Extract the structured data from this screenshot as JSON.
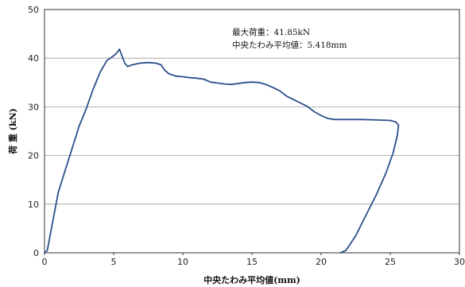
{
  "chart_data": {
    "type": "line",
    "title": "",
    "xlabel": "中央たわみ平均値(mm)",
    "ylabel": "荷 重 (kN)",
    "xlim": [
      0,
      30
    ],
    "ylim": [
      0,
      50
    ],
    "x_ticks": [
      "0",
      "5",
      "10",
      "15",
      "20",
      "25",
      "30"
    ],
    "y_ticks": [
      "0",
      "10",
      "20",
      "30",
      "40",
      "50"
    ],
    "grid": "horizontal",
    "annotations": [
      "最大荷重：41.85kN",
      "中央たわみ平均値：5.418mm"
    ],
    "series_color": "#2b4f8a",
    "series": [
      {
        "x": [
          0.0,
          0.2,
          0.5,
          1.0,
          1.5,
          2.0,
          2.5,
          3.0,
          3.5,
          4.0,
          4.5,
          5.0,
          5.2,
          5.418,
          5.6,
          5.8,
          6.0,
          6.3,
          6.6,
          7.0,
          7.5,
          8.0,
          8.4,
          8.7,
          9.0,
          9.5,
          10.0,
          10.5,
          11.0,
          11.5,
          12.0,
          12.5,
          13.0,
          13.5,
          14.0,
          14.5,
          15.0,
          15.5,
          16.0,
          16.5,
          17.0,
          17.5,
          18.0,
          18.5,
          19.0,
          19.5,
          20.0,
          20.5,
          21.0,
          22.0,
          23.0,
          24.0,
          25.0,
          25.4,
          25.6,
          25.5,
          25.2,
          24.7,
          24.0,
          23.2,
          22.5,
          21.8,
          21.4
        ],
        "y": [
          0.0,
          0.5,
          5.0,
          12.5,
          17.0,
          21.5,
          26.0,
          29.5,
          33.5,
          37.0,
          39.5,
          40.5,
          41.0,
          41.85,
          40.5,
          39.0,
          38.3,
          38.6,
          38.8,
          39.0,
          39.1,
          39.0,
          38.7,
          37.5,
          36.8,
          36.3,
          36.2,
          36.0,
          35.9,
          35.7,
          35.1,
          34.9,
          34.7,
          34.6,
          34.8,
          35.0,
          35.1,
          35.0,
          34.6,
          34.0,
          33.3,
          32.2,
          31.5,
          30.8,
          30.1,
          29.0,
          28.2,
          27.6,
          27.4,
          27.4,
          27.4,
          27.3,
          27.2,
          26.9,
          26.2,
          24.0,
          20.5,
          16.5,
          12.0,
          7.5,
          3.5,
          0.5,
          0.0
        ]
      }
    ]
  }
}
